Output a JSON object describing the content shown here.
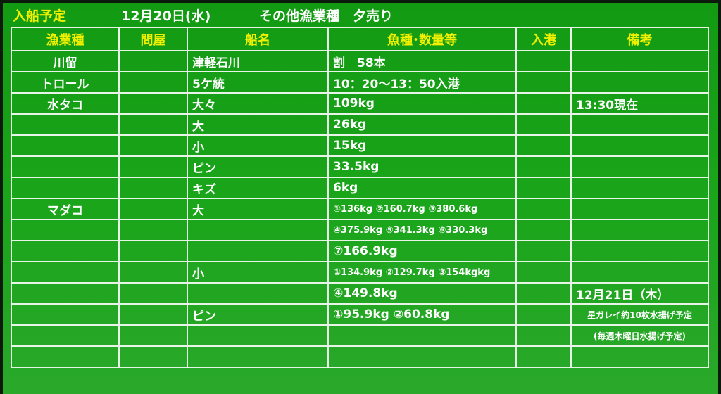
{
  "header": {
    "label": "入船予定",
    "date": "12月20日(水)",
    "category": "その他漁業種　夕売り"
  },
  "columns": [
    "漁業種",
    "問屋",
    "船名",
    "魚種･数量等",
    "入港",
    "備考"
  ],
  "rows": [
    [
      "川留",
      "",
      "津軽石川",
      "割　58本",
      "",
      ""
    ],
    [
      "トロール",
      "",
      "5ケ統",
      "10：20～13：50入港",
      "",
      ""
    ],
    [
      "水タコ",
      "",
      "大々",
      "109kg",
      "",
      "13:30現在"
    ],
    [
      "",
      "",
      "大",
      "26kg",
      "",
      ""
    ],
    [
      "",
      "",
      "小",
      "15kg",
      "",
      ""
    ],
    [
      "",
      "",
      "ピン",
      "33.5kg",
      "",
      ""
    ],
    [
      "",
      "",
      "キズ",
      "6kg",
      "",
      ""
    ],
    [
      "マダコ",
      "",
      "大",
      "①136kg ②160.7kg ③380.6kg",
      "",
      ""
    ],
    [
      "",
      "",
      "",
      "④375.9kg ⑤341.3kg ⑥330.3kg",
      "",
      ""
    ],
    [
      "",
      "",
      "",
      "⑦166.9kg",
      "",
      ""
    ],
    [
      "",
      "",
      "小",
      "①134.9kg ②129.7kg ③154kgkg",
      "",
      ""
    ],
    [
      "",
      "",
      "",
      "④149.8kg",
      "",
      "12月21日（木）"
    ],
    [
      "",
      "",
      "ピン",
      "①95.9kg ②60.8kg",
      "",
      "星ガレイ約10枚水揚げ予定"
    ],
    [
      "",
      "",
      "",
      "",
      "",
      "(毎週木曜日水揚げ予定)"
    ],
    [
      "",
      "",
      "",
      "",
      "",
      ""
    ]
  ]
}
